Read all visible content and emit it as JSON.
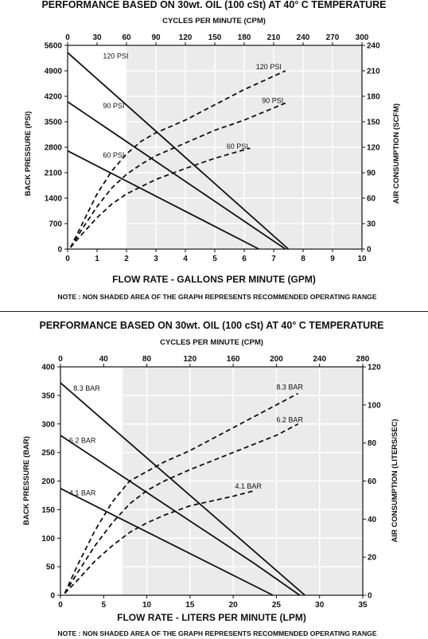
{
  "chart_data": [
    {
      "type": "line",
      "title": "PERFORMANCE  BASED ON 30wt. OIL (100 cSt) AT 40° C TEMPERATURE",
      "top_axis": {
        "label": "CYCLES PER MINUTE (CPM)",
        "range": [
          0,
          300
        ],
        "ticks": [
          0,
          30,
          60,
          90,
          120,
          150,
          180,
          210,
          240,
          270,
          300
        ]
      },
      "xlabel": "FLOW RATE - GALLONS PER MINUTE (GPM)",
      "xlim": [
        0,
        10
      ],
      "xticks": [
        0,
        1,
        2,
        3,
        4,
        5,
        6,
        7,
        8,
        9,
        10
      ],
      "ylabel": "BACK PRESSURE  (PSI)",
      "ylim": [
        0,
        5600
      ],
      "yticks": [
        0,
        700,
        1400,
        2100,
        2800,
        3500,
        4200,
        4900,
        5600
      ],
      "y2label": "AIR CONSUMPTION  (SCFM)",
      "y2lim": [
        0,
        240
      ],
      "y2ticks": [
        0,
        30,
        60,
        90,
        120,
        150,
        180,
        210,
        240
      ],
      "shaded_from_x": 2,
      "pressure_series": [
        {
          "name": "120 PSI",
          "x": [
            0,
            7.5
          ],
          "y": [
            5400,
            0
          ]
        },
        {
          "name": "90 PSI",
          "x": [
            0,
            7.4
          ],
          "y": [
            4050,
            0
          ]
        },
        {
          "name": "60 PSI",
          "x": [
            0,
            6.5
          ],
          "y": [
            2700,
            0
          ]
        }
      ],
      "air_series": [
        {
          "name": "120 PSI",
          "x": [
            0.1,
            0.5,
            1,
            1.5,
            2,
            2.5,
            3,
            4,
            5,
            6,
            7.4
          ],
          "y": [
            2,
            30,
            65,
            92,
            112,
            127,
            137,
            152,
            170,
            188,
            210
          ]
        },
        {
          "name": "90 PSI",
          "x": [
            0.1,
            0.5,
            1,
            1.5,
            2,
            2.5,
            3,
            4,
            5,
            6,
            7.4
          ],
          "y": [
            2,
            24,
            50,
            72,
            88,
            100,
            110,
            125,
            140,
            152,
            172
          ]
        },
        {
          "name": "60 PSI",
          "x": [
            0.1,
            0.5,
            1,
            1.5,
            2,
            3,
            4,
            5,
            6.2
          ],
          "y": [
            2,
            18,
            37,
            53,
            65,
            82,
            95,
            107,
            119
          ]
        }
      ],
      "note": "NOTE : NON SHADED AREA OF THE GRAPH REPRESENTS RECOMMENDED OPERATING RANGE"
    },
    {
      "type": "line",
      "title": "PERFORMANCE  BASED ON 30wt. OIL (100 cSt) AT 40° C TEMPERATURE",
      "top_axis": {
        "label": "CYCLES PER MINUTE (CPM)",
        "range": [
          0,
          280
        ],
        "ticks": [
          0,
          40,
          80,
          120,
          160,
          200,
          240,
          280
        ]
      },
      "xlabel": "FLOW RATE - LITERS PER MINUTE (LPM)",
      "xlim": [
        0,
        35
      ],
      "xticks": [
        0,
        5,
        10,
        15,
        20,
        25,
        30,
        35
      ],
      "ylabel": "BACK PRESSURE (BAR)",
      "ylim": [
        0,
        400
      ],
      "yticks": [
        0,
        50,
        100,
        150,
        200,
        250,
        300,
        350,
        400
      ],
      "y2label": "AIR CONSUMPTION  (LITERS/SEC)",
      "y2lim": [
        0,
        120
      ],
      "y2ticks": [
        0,
        20,
        40,
        60,
        80,
        100,
        120
      ],
      "shaded_from_x": 7.2,
      "pressure_series": [
        {
          "name": "8.3 BAR",
          "x": [
            0,
            28.3
          ],
          "y": [
            372,
            0
          ]
        },
        {
          "name": "6.2 BAR",
          "x": [
            0,
            22.5,
            27.7
          ],
          "y": [
            280,
            55,
            0
          ]
        },
        {
          "name": "4.1 BAR",
          "x": [
            0,
            24.6
          ],
          "y": [
            187,
            0
          ]
        }
      ],
      "air_series": [
        {
          "name": "8.3 BAR",
          "x": [
            0.5,
            2,
            4,
            6,
            8,
            10,
            12,
            15,
            20,
            25,
            27.5
          ],
          "y": [
            1,
            16,
            34,
            49,
            60,
            65,
            70,
            76,
            88,
            100,
            106
          ]
        },
        {
          "name": "6.2 BAR",
          "x": [
            0.5,
            2,
            4,
            6,
            8,
            10,
            12,
            15,
            20,
            25,
            27.5
          ],
          "y": [
            1,
            12,
            26,
            38,
            48,
            55,
            60,
            66,
            75,
            84,
            90
          ]
        },
        {
          "name": "4.1 BAR",
          "x": [
            0.5,
            2,
            4,
            6,
            8,
            10,
            12,
            15,
            20,
            22.5
          ],
          "y": [
            1,
            8,
            18,
            26,
            33,
            38,
            42,
            47,
            52,
            55
          ]
        }
      ],
      "note": "NOTE : NON SHADED AREA OF THE GRAPH REPRESENTS RECOMMENDED OPERATING RANGE"
    }
  ]
}
